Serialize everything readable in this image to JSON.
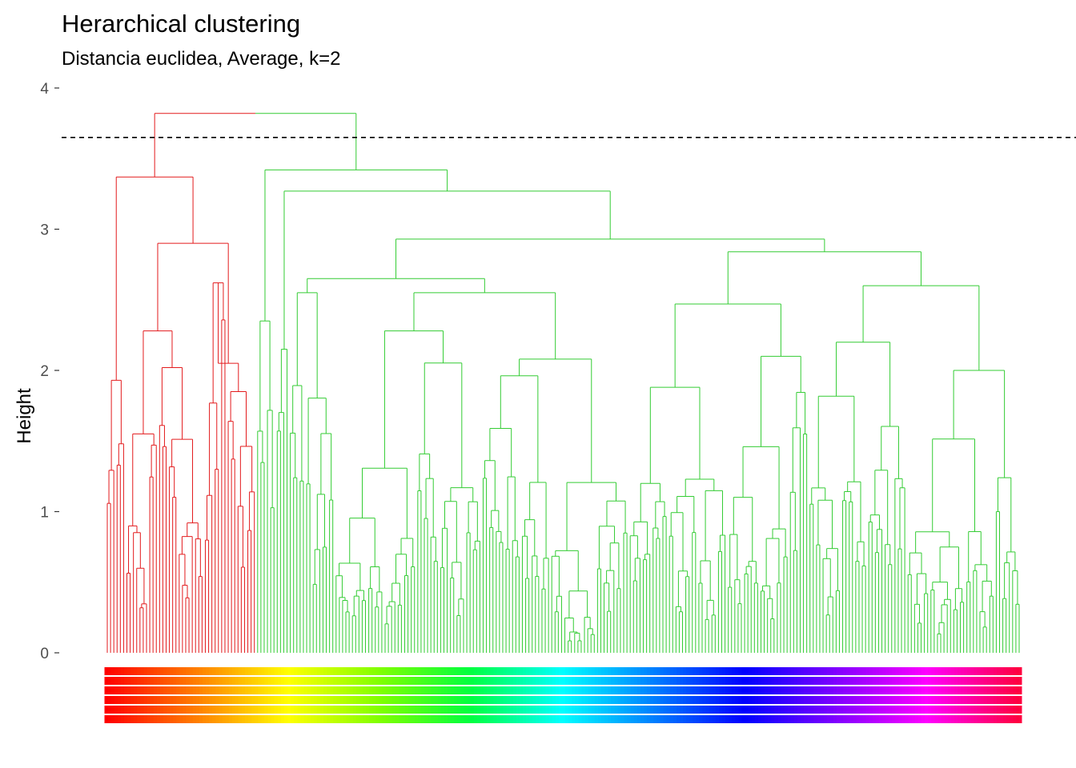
{
  "chart_data": {
    "type": "dendrogram",
    "title": "Herarchical clustering",
    "subtitle": "Distancia euclidea, Average, k=2",
    "ylabel": "Height",
    "ylim": [
      0,
      4
    ],
    "yticks": [
      "0",
      "1",
      "2",
      "3",
      "4"
    ],
    "cut_height": 3.65,
    "k": 2,
    "n_leaves": 280,
    "grid": false,
    "colors": {
      "cluster_1": "#E31A1C",
      "cluster_2": "#33CC33",
      "cut_line": "#000000",
      "label_palette": "rainbow"
    },
    "clusters": [
      {
        "id": 1,
        "leaf_range": [
          0,
          46
        ],
        "structure": "splits=1.93,1.82,1.64,1.55,1.45,1.35,1.22,1.12,1.02,0.9,0.8,0.7,0.6,0.5,0.4"
      },
      {
        "id": 2,
        "leaf_range": [
          46,
          280
        ],
        "structure": "splits=2.35,2.22,2.15,1.85,1.75,1.6,1.52,1.4,1.3,1.2,1.1,1.0,0.9,0.78,0.7,0.6,0.5,0.42,0.32"
      }
    ],
    "merges": [
      {
        "left": [
          0,
          46
        ],
        "right": [
          46,
          280
        ],
        "height": 3.82
      },
      {
        "left": [
          0,
          30
        ],
        "right": [
          30,
          46
        ],
        "height": 3.37
      },
      {
        "left": [
          0,
          6
        ],
        "right": [
          6,
          30
        ],
        "height": 3.37
      },
      {
        "left": [
          6,
          30
        ],
        "right": [
          30,
          46
        ],
        "height": 2.9
      },
      {
        "left": [
          6,
          30
        ],
        "right": [
          30,
          46
        ],
        "height": 2.28
      },
      {
        "left": [
          46,
          52
        ],
        "right": [
          52,
          280
        ],
        "height": 3.42
      },
      {
        "left": [
          52,
          280
        ],
        "right": [
          280,
          280
        ],
        "height": 3.27
      },
      {
        "left": [
          56,
          160
        ],
        "right": [
          160,
          280
        ],
        "height": 2.93
      },
      {
        "left": [
          56,
          70
        ],
        "right": [
          70,
          160
        ],
        "height": 2.65
      },
      {
        "left": [
          160,
          215
        ],
        "right": [
          215,
          280
        ],
        "height": 2.84
      }
    ],
    "leaf_label_bands": [
      "#FF0000",
      "#FF8000",
      "#FFFF00",
      "#80FF00",
      "#00FF40",
      "#00FFFF",
      "#0080FF",
      "#0000FF",
      "#8000FF",
      "#FF00FF",
      "#FF0040"
    ]
  }
}
